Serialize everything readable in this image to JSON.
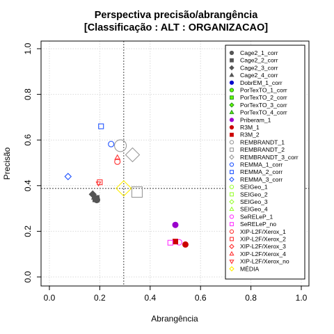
{
  "chart_data": {
    "type": "scatter",
    "title": "Perspectiva precisão/abrangência",
    "subtitle": "[Classificação : ALT : ORGANIZACAO]",
    "xlabel": "Abrangência",
    "ylabel": "Precisão",
    "xlim": [
      0,
      1
    ],
    "ylim": [
      0,
      1
    ],
    "xticks": [
      "0.0",
      "0.2",
      "0.4",
      "0.6",
      "0.8",
      "1.0"
    ],
    "yticks": [
      "0.0",
      "0.2",
      "0.4",
      "0.6",
      "0.8",
      "1.0"
    ],
    "grid": true,
    "legend_position": "right",
    "reference_lines": {
      "x": 0.295,
      "y": 0.388
    },
    "series": [
      {
        "name": "Cage2_1_corr",
        "shape": "circle",
        "color": "#555555",
        "fill": "#555555",
        "size": 4.5,
        "x": 0.188,
        "y": 0.338
      },
      {
        "name": "Cage2_2_corr",
        "shape": "square",
        "color": "#555555",
        "fill": "#555555",
        "size": 4.5,
        "x": 0.185,
        "y": 0.343
      },
      {
        "name": "Cage2_3_corr",
        "shape": "diamond",
        "color": "#555555",
        "fill": "#555555",
        "size": 5,
        "x": 0.172,
        "y": 0.362
      },
      {
        "name": "Cage2_4_corr",
        "shape": "triangle",
        "color": "#555555",
        "fill": "#555555",
        "size": 5,
        "x": 0.18,
        "y": 0.35
      },
      {
        "name": "DobrEM_1_corr",
        "shape": "circle",
        "color": "#0000cc",
        "fill": "#0000cc",
        "size": 3
      },
      {
        "name": "PorTexTO_1_corr",
        "shape": "circle",
        "color": "#228b22",
        "fill": "#66ff00",
        "size": 3
      },
      {
        "name": "PorTexTO_2_corr",
        "shape": "square",
        "color": "#228b22",
        "fill": "#66ff00",
        "size": 3
      },
      {
        "name": "PorTexTO_3_corr",
        "shape": "diamond",
        "color": "#228b22",
        "fill": "#66ff00",
        "size": 3.5
      },
      {
        "name": "PorTexTO_4_corr",
        "shape": "triangle",
        "color": "#228b22",
        "fill": "#66ff00",
        "size": 3.5
      },
      {
        "name": "Priberam_1",
        "shape": "circle",
        "color": "#9900cc",
        "fill": "#9900cc",
        "size": 4,
        "x": 0.5,
        "y": 0.228
      },
      {
        "name": "R3M_1",
        "shape": "circle",
        "color": "#cc0000",
        "fill": "#cc0000",
        "size": 4,
        "x": 0.54,
        "y": 0.142
      },
      {
        "name": "R3M_2",
        "shape": "square",
        "color": "#cc0000",
        "fill": "#cc0000",
        "size": 3.5,
        "x": 0.5,
        "y": 0.155
      },
      {
        "name": "REMBRANDT_1",
        "shape": "circle",
        "color": "#999999",
        "fill": "none",
        "size": 8.5,
        "x": 0.282,
        "y": 0.575
      },
      {
        "name": "REMBRANDT_2",
        "shape": "square",
        "color": "#999999",
        "fill": "none",
        "size": 7.5,
        "x": 0.348,
        "y": 0.372
      },
      {
        "name": "REMBRANDT_3_corr",
        "shape": "diamond",
        "color": "#999999",
        "fill": "none",
        "size": 10,
        "x": 0.33,
        "y": 0.535
      },
      {
        "name": "REMMA_1_corr",
        "shape": "circle",
        "color": "#2255ff",
        "fill": "none",
        "size": 4,
        "x": 0.245,
        "y": 0.582
      },
      {
        "name": "REMMA_2_corr",
        "shape": "square",
        "color": "#2255ff",
        "fill": "none",
        "size": 3.5,
        "x": 0.205,
        "y": 0.66
      },
      {
        "name": "REMMA_3_corr",
        "shape": "diamond",
        "color": "#2255ff",
        "fill": "none",
        "size": 4.5,
        "x": 0.074,
        "y": 0.44
      },
      {
        "name": "SEIGeo_1",
        "shape": "circle",
        "color": "#99ff33",
        "fill": "none",
        "size": 3
      },
      {
        "name": "SEIGeo_2",
        "shape": "square",
        "color": "#99ff33",
        "fill": "none",
        "size": 3
      },
      {
        "name": "SEIGeo_3",
        "shape": "diamond",
        "color": "#99ff33",
        "fill": "none",
        "size": 3.5
      },
      {
        "name": "SEIGeo_4",
        "shape": "triangle",
        "color": "#99ff33",
        "fill": "none",
        "size": 3.5
      },
      {
        "name": "SeRELeP_1",
        "shape": "circle",
        "color": "#ff33ff",
        "fill": "none",
        "size": 4,
        "x": 0.515,
        "y": 0.152
      },
      {
        "name": "SeRELeP_no",
        "shape": "square",
        "color": "#ff33ff",
        "fill": "none",
        "size": 3.5,
        "x": 0.48,
        "y": 0.15
      },
      {
        "name": "XIP-L2F/Xerox_1",
        "shape": "circle",
        "color": "#ff3333",
        "fill": "none",
        "size": 4,
        "x": 0.27,
        "y": 0.505
      },
      {
        "name": "XIP-L2F/Xerox_2",
        "shape": "square",
        "color": "#ff3333",
        "fill": "none",
        "size": 3.5,
        "x": 0.2,
        "y": 0.415
      },
      {
        "name": "XIP-L2F/Xerox_3",
        "shape": "diamond",
        "color": "#ff3333",
        "fill": "none",
        "size": 4
      },
      {
        "name": "XIP-L2F/Xerox_4",
        "shape": "triangle",
        "color": "#ff3333",
        "fill": "none",
        "size": 4,
        "x": 0.27,
        "y": 0.522
      },
      {
        "name": "XIP-L2F/Xerox_no",
        "shape": "triangle-down",
        "color": "#ff3333",
        "fill": "none",
        "size": 3.5,
        "x": 0.195,
        "y": 0.41
      },
      {
        "name": "MÉDIA",
        "shape": "diamond",
        "color": "#ffee00",
        "fill": "none",
        "size": 11,
        "x": 0.295,
        "y": 0.388
      }
    ]
  }
}
